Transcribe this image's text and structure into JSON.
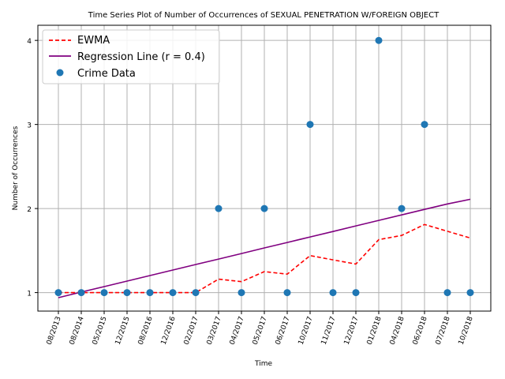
{
  "chart_data": {
    "type": "scatter",
    "title": "Time Series Plot of Number of Occurrences of SEXUAL PENETRATION W/FOREIGN OBJECT",
    "xlabel": "Time",
    "ylabel": "Number of Occurrences",
    "categories": [
      "08/2013",
      "08/2014",
      "05/2015",
      "12/2015",
      "08/2016",
      "12/2016",
      "02/2017",
      "03/2017",
      "04/2017",
      "05/2017",
      "06/2017",
      "10/2017",
      "11/2017",
      "12/2017",
      "01/2018",
      "04/2018",
      "06/2018",
      "07/2018",
      "10/2018"
    ],
    "yticks": [
      1,
      2,
      3,
      4
    ],
    "ylim": [
      0.78,
      4.18
    ],
    "grid": true,
    "legend_position": "top-left",
    "series": [
      {
        "name": "EWMA",
        "kind": "line",
        "style": "dashed",
        "color": "#ff0000",
        "values": [
          1,
          1,
          1,
          1,
          1,
          1,
          1,
          1.16,
          1.13,
          1.25,
          1.22,
          1.44,
          1.39,
          1.34,
          1.63,
          1.68,
          1.81,
          1.73,
          1.65
        ]
      },
      {
        "name": "Regression Line (r = 0.4)",
        "kind": "line",
        "style": "solid",
        "color": "#800080",
        "values": [
          0.94,
          1.006,
          1.071,
          1.137,
          1.203,
          1.268,
          1.334,
          1.399,
          1.465,
          1.531,
          1.596,
          1.662,
          1.727,
          1.793,
          1.859,
          1.924,
          1.99,
          2.055,
          2.11
        ]
      },
      {
        "name": "Crime Data",
        "kind": "scatter",
        "color": "#1f77b4",
        "values": [
          1,
          1,
          1,
          1,
          1,
          1,
          1,
          2,
          1,
          2,
          1,
          3,
          1,
          1,
          4,
          2,
          3,
          1,
          1
        ]
      }
    ]
  }
}
